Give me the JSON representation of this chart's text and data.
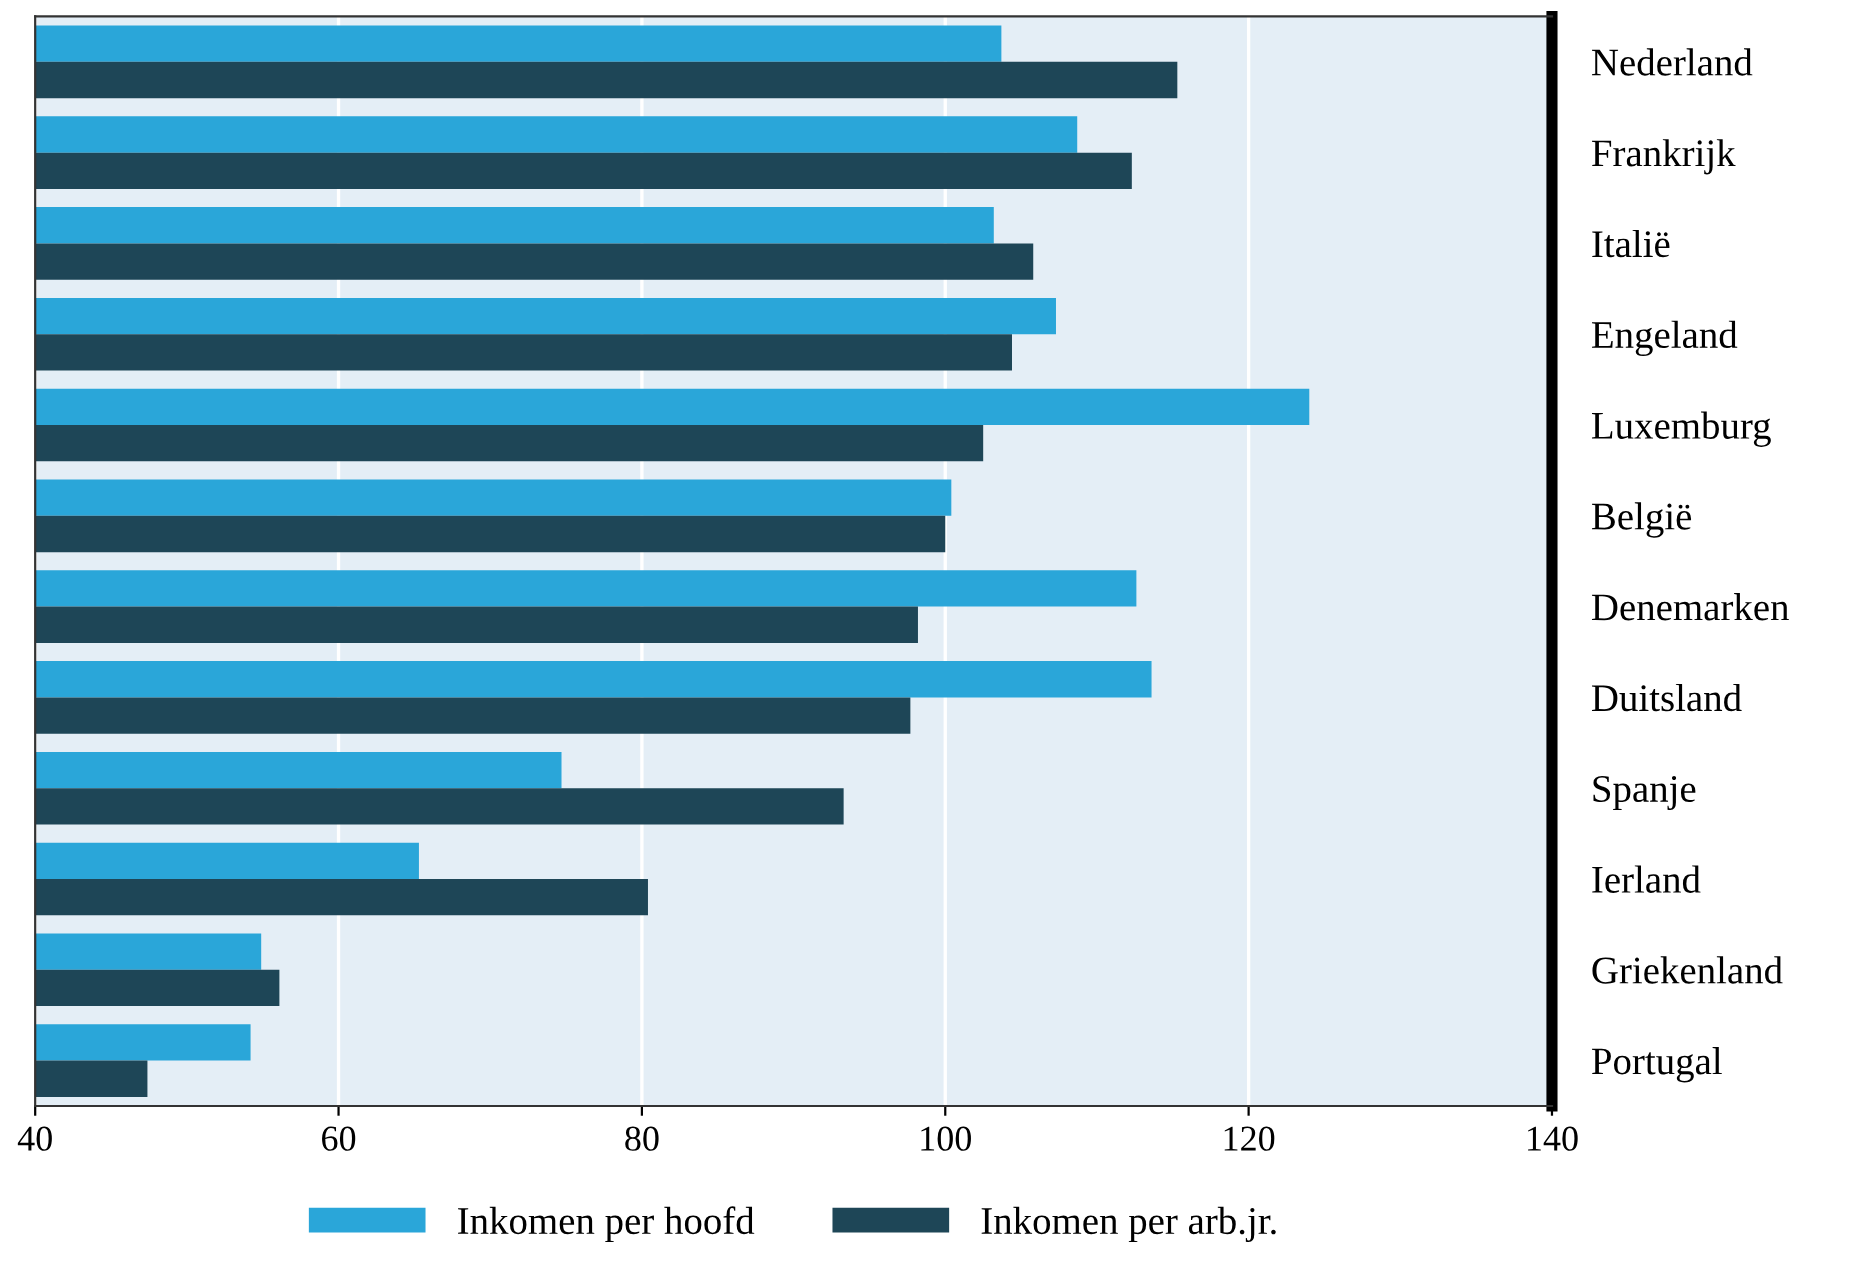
{
  "chart_data": {
    "type": "bar",
    "orientation": "horizontal",
    "categories": [
      "Nederland",
      "Frankrijk",
      "Italië",
      "Engeland",
      "Luxemburg",
      "België",
      "Denemarken",
      "Duitsland",
      "Spanje",
      "Ierland",
      "Griekenland",
      "Portugal"
    ],
    "series": [
      {
        "name": "Inkomen per hoofd",
        "color": "#2aa6d9",
        "values": [
          103.7,
          108.7,
          103.2,
          107.3,
          124.0,
          100.4,
          112.6,
          113.6,
          74.7,
          65.3,
          54.9,
          54.2
        ]
      },
      {
        "name": "Inkomen per arb.jr.",
        "color": "#1e4657",
        "values": [
          115.3,
          112.3,
          105.8,
          104.4,
          102.5,
          100.0,
          98.2,
          97.7,
          93.3,
          80.4,
          56.1,
          47.4
        ]
      }
    ],
    "xlim": [
      40,
      140
    ],
    "xticks": [
      40,
      60,
      80,
      100,
      120,
      140
    ],
    "grid": "x",
    "legend": "bottom"
  }
}
